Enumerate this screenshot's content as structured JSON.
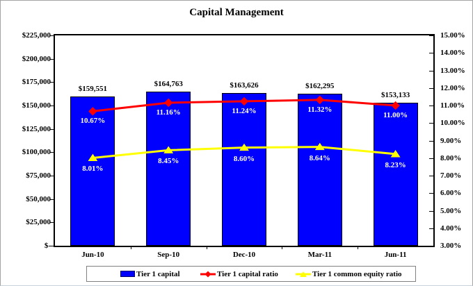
{
  "title": "Capital Management",
  "chart_data": {
    "type": "bar",
    "subtype": "bar-line-combo",
    "title": "Capital Management",
    "categories": [
      "Jun-10",
      "Sep-10",
      "Dec-10",
      "Mar-11",
      "Jun-11"
    ],
    "series": [
      {
        "name": "Tier 1 capital",
        "type": "bar",
        "axis": "left",
        "color": "#0000ff",
        "values": [
          159551,
          164763,
          163626,
          162295,
          153133
        ],
        "labels": [
          "$159,551",
          "$164,763",
          "$163,626",
          "$162,295",
          "$153,133"
        ]
      },
      {
        "name": "Tier 1 capital ratio",
        "type": "line",
        "marker": "diamond",
        "axis": "right",
        "color": "#ff0000",
        "values": [
          10.67,
          11.16,
          11.24,
          11.32,
          11.0
        ],
        "labels": [
          "10.67%",
          "11.16%",
          "11.24%",
          "11.32%",
          "11.00%"
        ]
      },
      {
        "name": "Tier 1 common equity ratio",
        "type": "line",
        "marker": "triangle",
        "axis": "right",
        "color": "#ffff00",
        "values": [
          8.01,
          8.45,
          8.6,
          8.64,
          8.23
        ],
        "labels": [
          "8.01%",
          "8.45%",
          "8.60%",
          "8.64%",
          "8.23%"
        ]
      }
    ],
    "left_axis": {
      "min": 0,
      "max": 225000,
      "step": 25000,
      "tick_labels": [
        "$225,000",
        "$200,000",
        "$175,000",
        "$150,000",
        "$125,000",
        "$100,000",
        "$75,000",
        "$50,000",
        "$25,000",
        "$-"
      ]
    },
    "right_axis": {
      "min": 3,
      "max": 15,
      "step": 1,
      "tick_labels": [
        "15.00%",
        "14.00%",
        "13.00%",
        "12.00%",
        "11.00%",
        "10.00%",
        "9.00%",
        "8.00%",
        "7.00%",
        "6.00%",
        "5.00%",
        "4.00%",
        "3.00%"
      ]
    },
    "grid": "off",
    "legend_position": "bottom"
  }
}
